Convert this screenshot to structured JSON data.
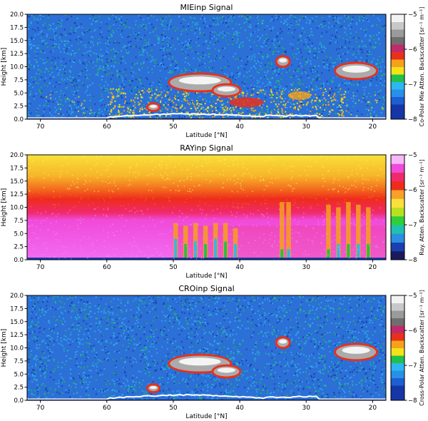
{
  "colors": {
    "blue_dark": "#1636a8",
    "blue": "#2c6fd6",
    "cyan": "#2bb8f0",
    "green": "#22c04a",
    "yellow": "#f5e21a",
    "orange": "#f5a21a",
    "red": "#e8301c",
    "magenta": "#f24cf0",
    "white": "#ffffff",
    "gray": "#8a8a8a"
  },
  "chart_data": [
    {
      "type": "heatmap",
      "title": "MIEinp Signal",
      "xlabel": "Latitude [°N]",
      "ylabel": "Height [km]",
      "xlim": [
        72,
        18
      ],
      "ylim": [
        0,
        20
      ],
      "xticks": [
        "70",
        "60",
        "50",
        "40",
        "30",
        "20"
      ],
      "yticks": [
        "0.0",
        "2.5",
        "5.0",
        "7.5",
        "10.0",
        "12.5",
        "15.0",
        "17.5",
        "20.0"
      ],
      "colorbar": {
        "label": "Co-Polar Mie Atten. Backscatter [sr⁻¹ m⁻¹]",
        "ticks": [
          "−8",
          "−7",
          "−6",
          "−5"
        ],
        "range": [
          -8,
          -5
        ],
        "colormap": "calipso"
      }
    },
    {
      "type": "heatmap",
      "title": "RAYinp Signal",
      "xlabel": "Latitude [°N]",
      "ylabel": "Height [km]",
      "xlim": [
        72,
        18
      ],
      "ylim": [
        0,
        20
      ],
      "xticks": [
        "70",
        "60",
        "50",
        "40",
        "30",
        "20"
      ],
      "yticks": [
        "0.0",
        "2.5",
        "5.0",
        "7.5",
        "10.0",
        "12.5",
        "15.0",
        "17.5",
        "20.0"
      ],
      "colorbar": {
        "label": "Ray. Atten. Backscatter [sr⁻¹ m⁻¹]",
        "ticks": [
          "−8",
          "−7",
          "−6",
          "−5"
        ],
        "range": [
          -8,
          -5
        ],
        "colormap": "spectral"
      }
    },
    {
      "type": "heatmap",
      "title": "CROinp Signal",
      "xlabel": "Latitude [°N]",
      "ylabel": "Height [km]",
      "xlim": [
        72,
        18
      ],
      "ylim": [
        0,
        20
      ],
      "xticks": [
        "70",
        "60",
        "50",
        "40",
        "30",
        "20"
      ],
      "yticks": [
        "0.0",
        "2.5",
        "5.0",
        "7.5",
        "10.0",
        "12.5",
        "15.0",
        "17.5",
        "20.0"
      ],
      "colorbar": {
        "label": "Cross-Polar Atten. Backscatter [sr⁻¹ m⁻¹]",
        "ticks": [
          "−8",
          "−7",
          "−6",
          "−5"
        ],
        "range": [
          -8,
          -5
        ],
        "colormap": "calipso"
      }
    }
  ]
}
